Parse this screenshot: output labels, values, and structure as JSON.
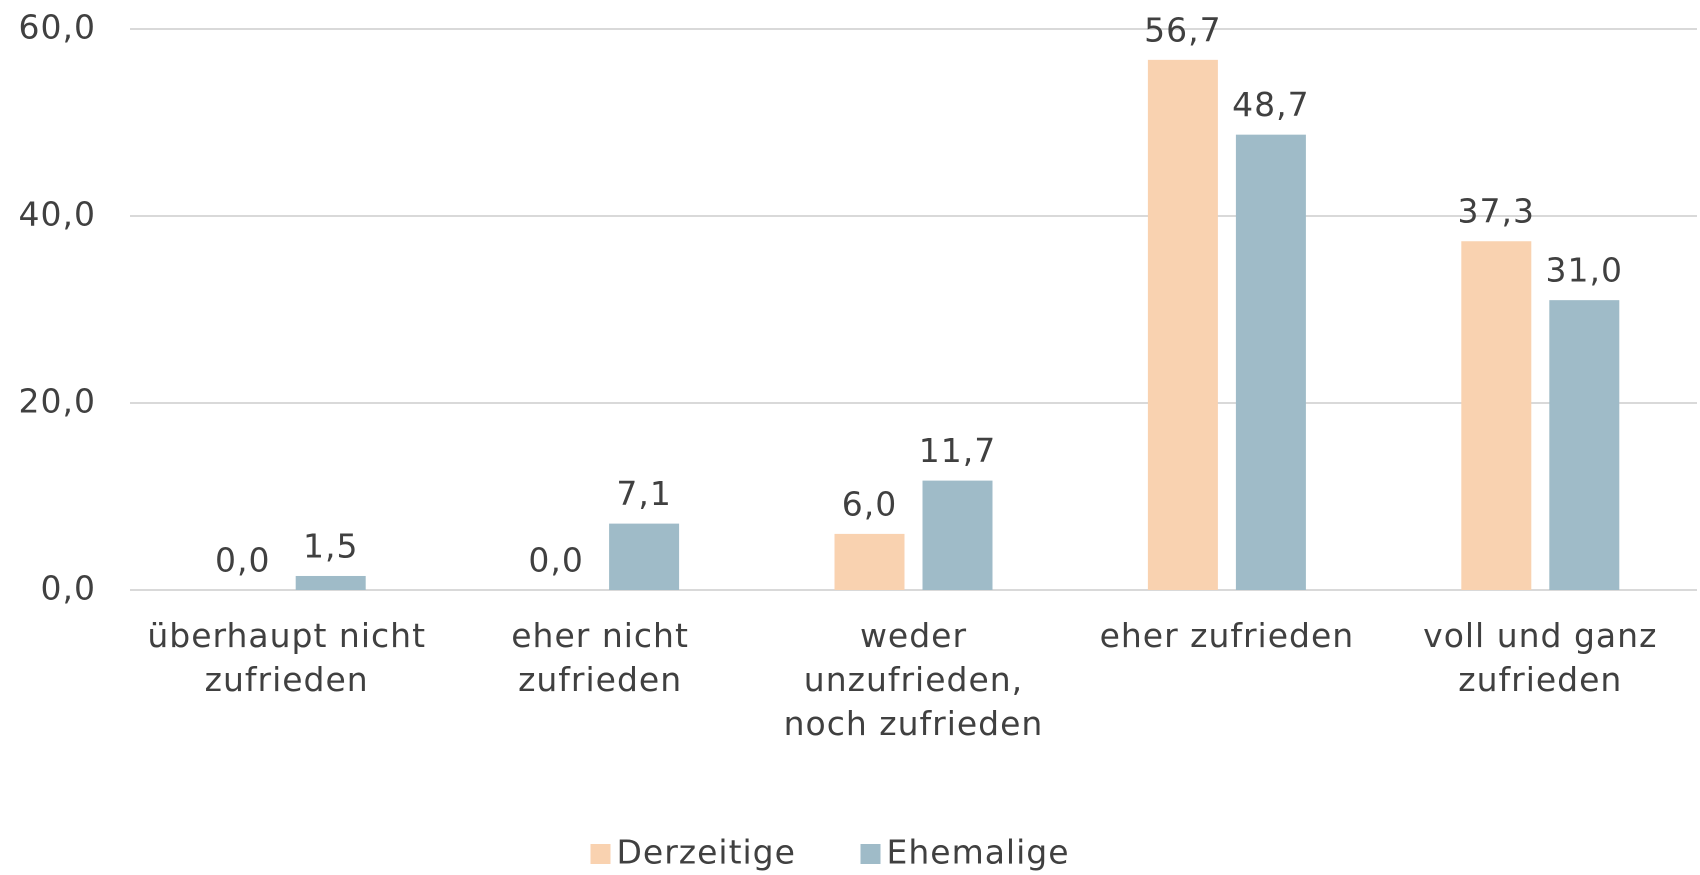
{
  "chart_data": {
    "type": "bar",
    "categories": [
      "überhaupt nicht zufrieden",
      "eher nicht zufrieden",
      "weder unzufrieden, noch zufrieden",
      "eher zufrieden",
      "voll und ganz zufrieden"
    ],
    "series": [
      {
        "name": "Derzeitige",
        "color": "#f9d2b0",
        "values": [
          0,
          0,
          6,
          56.7,
          37.3
        ],
        "value_labels": [
          "0,0",
          "0,0",
          "6,0",
          "56,7",
          "37,3"
        ]
      },
      {
        "name": "Ehemalige",
        "color": "#9fbbc8",
        "values": [
          1.5,
          7.1,
          11.7,
          48.7,
          31
        ],
        "value_labels": [
          "1,5",
          "7,1",
          "11,7",
          "48,7",
          "31,0"
        ]
      }
    ],
    "ylim": [
      0,
      60
    ],
    "yticks": [
      {
        "value": 0,
        "label": "0,0"
      },
      {
        "value": 20,
        "label": "20,0"
      },
      {
        "value": 40,
        "label": "40,0"
      },
      {
        "value": 60,
        "label": "60,0"
      }
    ],
    "grid": true,
    "legend": "bottom"
  }
}
